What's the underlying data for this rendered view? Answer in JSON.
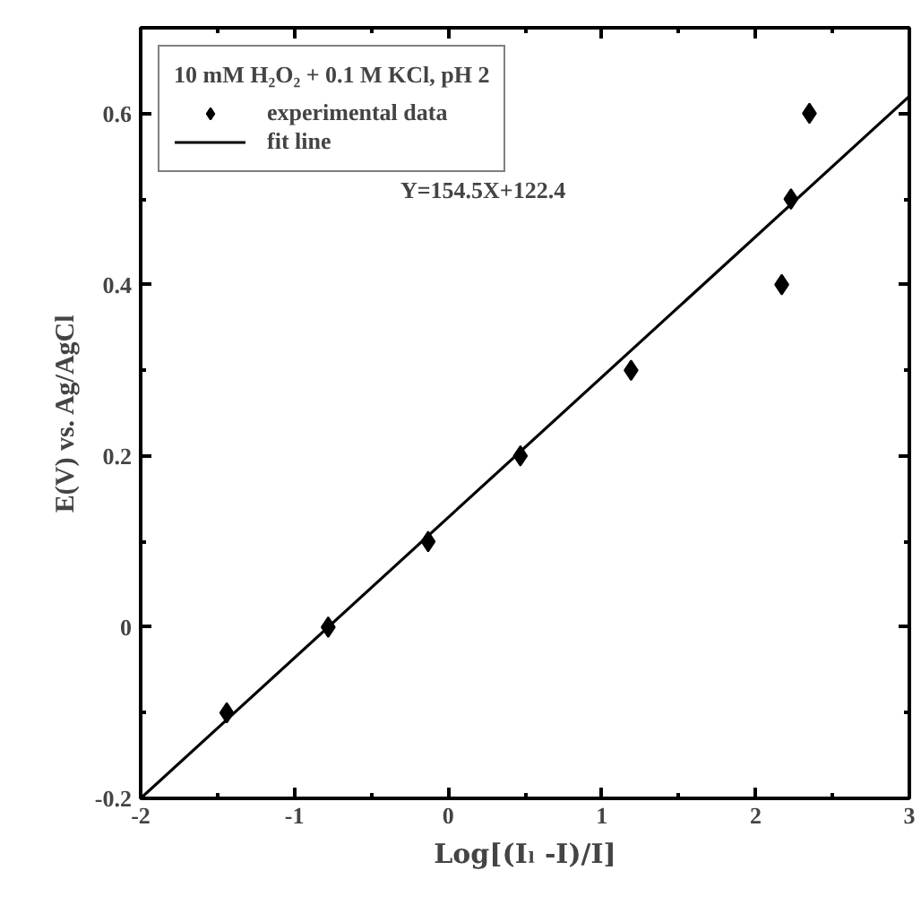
{
  "chart_data": {
    "type": "scatter",
    "legend_title": "10 mM H₂O₂ + 0.1 M KCl, pH 2",
    "xlabel": "Log[(Iₗ -I)/I]",
    "ylabel": "E(V) vs. Ag/AgCl",
    "annotations": [
      "Y=154.5X+122.4"
    ],
    "xlim": [
      -2,
      3
    ],
    "ylim": [
      -0.2,
      0.7
    ],
    "xticks": [
      -2,
      -1,
      0,
      1,
      2,
      3
    ],
    "yticks": [
      -0.2,
      0,
      0.2,
      0.4,
      0.6
    ],
    "grid": false,
    "legend": "top left",
    "series": [
      {
        "name": "experimental data",
        "marker": "diamond",
        "color": "#000000",
        "x": [
          -1.44,
          -0.78,
          -0.13,
          0.47,
          1.19,
          2.17,
          2.23,
          2.35
        ],
        "values": [
          -0.1,
          0,
          0.1,
          0.2,
          0.3,
          0.4,
          0.5,
          0.6
        ]
      },
      {
        "name": "fit line",
        "type": "line",
        "marker": "none",
        "color": "#000000",
        "line_style": "solid",
        "x": [
          -2,
          3
        ],
        "values": [
          -0.2,
          0.62
        ]
      }
    ]
  }
}
